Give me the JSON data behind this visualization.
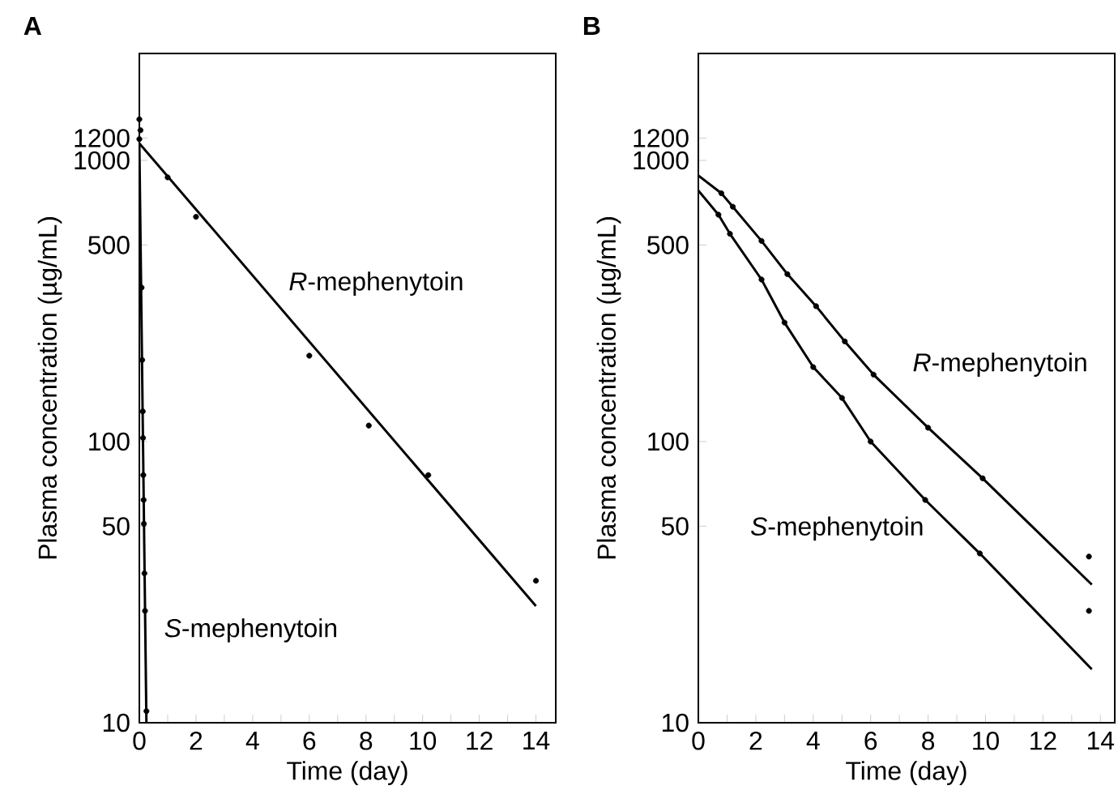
{
  "chart_data": [
    {
      "type": "scatter",
      "title": "A",
      "xlabel": "Time (day)",
      "ylabel": "Plasma concentration (µg/mL)",
      "log": "y",
      "line_style": "solid",
      "xlim": [
        0,
        14.7
      ],
      "ylim": [
        10,
        2400
      ],
      "xticks": [
        0,
        {
          "value": 1,
          "label": null
        },
        2,
        {
          "value": 3,
          "label": null
        },
        4,
        {
          "value": 5,
          "label": null
        },
        6,
        {
          "value": 7,
          "label": null
        },
        8,
        {
          "value": 9,
          "label": null
        },
        10,
        {
          "value": 11,
          "label": null
        },
        12,
        {
          "value": 13,
          "label": null
        },
        14
      ],
      "yticks": [
        10,
        50,
        100,
        500,
        1000,
        1200
      ],
      "series": [
        {
          "type": "scatter",
          "marker": "circle",
          "color": "#000000",
          "x": [
            0,
            0,
            1,
            2,
            6,
            8.1,
            10.2,
            14
          ],
          "values": [
            1400,
            1190,
            870,
            630,
            202,
            114,
            76,
            32
          ]
        },
        {
          "type": "scatter",
          "marker": "circle",
          "color": "#000000",
          "x": [
            0.04,
            0.08,
            0.1,
            0.12,
            0.13,
            0.14,
            0.15,
            0.16,
            0.18,
            0.2,
            0.25
          ],
          "values": [
            1280,
            353,
            195,
            128,
            103,
            76,
            62,
            51,
            34,
            25,
            11
          ]
        },
        {
          "type": "line",
          "marker": "none",
          "name": "*R*-mephenytoin",
          "color": "#000000",
          "x": [
            0,
            14
          ],
          "values": [
            1150,
            26
          ]
        },
        {
          "type": "line",
          "marker": "none",
          "name": "*S*-mephenytoin",
          "color": "#000000",
          "x": [
            0,
            0.25
          ],
          "values": [
            1150,
            10
          ]
        }
      ]
    },
    {
      "type": "scatter",
      "title": "B",
      "xlabel": "Time (day)",
      "ylabel": "Plasma concentration (µg/mL)",
      "log": "y",
      "line_style": "solid",
      "xlim": [
        0,
        14.5
      ],
      "ylim": [
        10,
        2400
      ],
      "xticks": [
        0,
        {
          "value": 1,
          "label": null
        },
        2,
        {
          "value": 3,
          "label": null
        },
        4,
        {
          "value": 5,
          "label": null
        },
        6,
        {
          "value": 7,
          "label": null
        },
        8,
        {
          "value": 9,
          "label": null
        },
        10,
        {
          "value": 11,
          "label": null
        },
        12,
        {
          "value": 13,
          "label": null
        },
        14
      ],
      "yticks": [
        10,
        50,
        100,
        500,
        1000,
        1200
      ],
      "series": [
        {
          "type": "scatter",
          "marker": "circle",
          "color": "#000000",
          "x": [
            0.8,
            1.2,
            2.2,
            3.1,
            4.1,
            5.1,
            6.1,
            8,
            9.9,
            13.6
          ],
          "values": [
            764,
            684,
            517,
            394,
            303,
            227,
            173,
            112,
            74,
            39
          ]
        },
        {
          "type": "scatter",
          "marker": "circle",
          "color": "#000000",
          "x": [
            0.7,
            1.1,
            2.2,
            3,
            4,
            5,
            6,
            7.9,
            9.8,
            13.6
          ],
          "values": [
            641,
            548,
            377,
            265,
            184,
            143,
            100,
            62,
            40,
            25
          ]
        },
        {
          "type": "line",
          "marker": "none",
          "name": "*R*-mephenytoin",
          "color": "#000000",
          "x": [
            0,
            0.8,
            1.2,
            2.2,
            3.1,
            4.1,
            5.1,
            6.1,
            8,
            9.9,
            13.7
          ],
          "values": [
            883,
            764,
            684,
            517,
            394,
            303,
            227,
            173,
            112,
            74,
            31
          ]
        },
        {
          "type": "line",
          "marker": "none",
          "name": "*S*-mephenytoin",
          "color": "#000000",
          "x": [
            0,
            0.7,
            1.1,
            2.2,
            3,
            4,
            5,
            6,
            7.9,
            9.8,
            13.7
          ],
          "values": [
            781,
            641,
            548,
            377,
            265,
            184,
            143,
            100,
            62,
            40,
            15.5
          ]
        }
      ]
    }
  ]
}
